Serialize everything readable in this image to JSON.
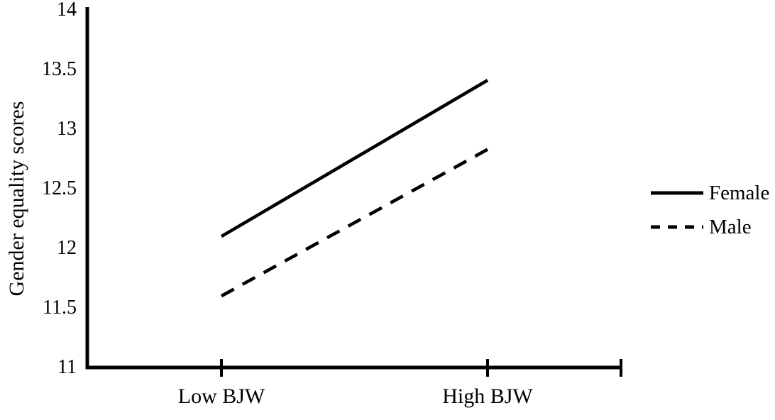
{
  "page": {
    "background_color": "#ffffff",
    "text_color": "#000000",
    "line_color": "#000000"
  },
  "chart_data": {
    "type": "line",
    "title": "",
    "xlabel": "",
    "ylabel": "Gender equality scores",
    "categories": [
      "Low BJW",
      "High BJW"
    ],
    "series": [
      {
        "name": "Female",
        "style": "solid",
        "values": [
          12.1,
          13.41
        ]
      },
      {
        "name": "Male",
        "style": "dashed",
        "values": [
          11.6,
          12.83
        ]
      }
    ],
    "ylim": [
      11,
      14
    ],
    "yticks": [
      "11",
      "11.5",
      "12",
      "12.5",
      "13",
      "13.5",
      "14"
    ],
    "grid": false,
    "legend_position": "right",
    "legend_entries": [
      "Female",
      "Male"
    ]
  }
}
